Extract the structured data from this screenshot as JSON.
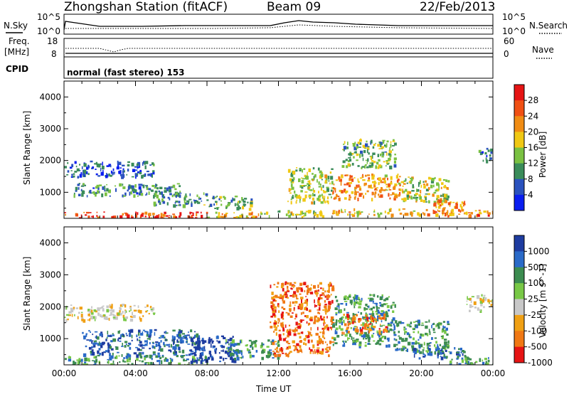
{
  "header": {
    "station": "Zhongshan Station (fitACF)",
    "beam": "Beam 09",
    "date": "22/Feb/2013"
  },
  "status_panels": {
    "left_labels": {
      "nsky": "N.Sky",
      "freq": "Freq.",
      "mhz": "[MHz]",
      "cpid": "CPID"
    },
    "right_labels": {
      "nsearch": "N.Search",
      "nave": "Nave"
    },
    "nsky_ticks": [
      "10^5",
      "10^0"
    ],
    "nsearch_ticks": [
      "10^5",
      "10^0"
    ],
    "freq_ticks": [
      "18",
      "8"
    ],
    "nave_ticks": [
      "60",
      "0"
    ],
    "cpid_text": "normal (fast stereo) 153"
  },
  "colors": {
    "power": [
      "#0a1ef0",
      "#2a52be",
      "#3a8c5a",
      "#7ac142",
      "#f0c814",
      "#f08c14",
      "#f05014",
      "#e61414"
    ],
    "velocity": [
      "#1e3ca0",
      "#2a6ac8",
      "#3c8c50",
      "#78c846",
      "#c8c8c8",
      "#f0a014",
      "#f07814",
      "#e61414"
    ]
  },
  "chart_data": [
    {
      "type": "heatmap",
      "panel": "power",
      "ylabel": "Slant Range [km]",
      "yticks": [
        "4000",
        "3000",
        "2000",
        "1000"
      ],
      "ylim": [
        180,
        4500
      ],
      "xlim": [
        "00:00",
        "24:00"
      ],
      "colorbar": {
        "label": "Power [dB]",
        "ticks": [
          "28",
          "24",
          "20",
          "16",
          "12",
          "8",
          "4"
        ],
        "range": [
          0,
          32
        ]
      },
      "regions": [
        {
          "t": [
            0.0,
            8.0
          ],
          "r": [
            200,
            400
          ],
          "level": 0.9
        },
        {
          "t": [
            8.0,
            11.0
          ],
          "r": [
            200,
            400
          ],
          "level": 0.65
        },
        {
          "t": [
            11.0,
            14.5
          ],
          "r": [
            250,
            450
          ],
          "level": 0.45
        },
        {
          "t": [
            15.0,
            21.0
          ],
          "r": [
            300,
            500
          ],
          "level": 0.6
        },
        {
          "t": [
            21.0,
            24.0
          ],
          "r": [
            280,
            450
          ],
          "level": 0.75
        },
        {
          "t": [
            0.0,
            5.0
          ],
          "r": [
            1500,
            2000
          ],
          "level": 0.15
        },
        {
          "t": [
            0.5,
            6.5
          ],
          "r": [
            900,
            1300
          ],
          "level": 0.25
        },
        {
          "t": [
            5.0,
            8.0
          ],
          "r": [
            600,
            1000
          ],
          "level": 0.3
        },
        {
          "t": [
            8.0,
            10.5
          ],
          "r": [
            500,
            900
          ],
          "level": 0.35
        },
        {
          "t": [
            12.5,
            15.0
          ],
          "r": [
            700,
            1800
          ],
          "level": 0.45
        },
        {
          "t": [
            15.0,
            19.0
          ],
          "r": [
            800,
            1600
          ],
          "level": 0.7
        },
        {
          "t": [
            15.5,
            18.5
          ],
          "r": [
            1800,
            2700
          ],
          "level": 0.4
        },
        {
          "t": [
            19.0,
            21.5
          ],
          "r": [
            700,
            1500
          ],
          "level": 0.5
        },
        {
          "t": [
            20.5,
            22.5
          ],
          "r": [
            400,
            800
          ],
          "level": 0.75
        },
        {
          "t": [
            23.0,
            24.0
          ],
          "r": [
            2000,
            2400
          ],
          "level": 0.15
        }
      ]
    },
    {
      "type": "heatmap",
      "panel": "velocity",
      "ylabel": "Slant Range [km]",
      "yticks": [
        "4000",
        "3000",
        "2000",
        "1000"
      ],
      "ylim": [
        180,
        4500
      ],
      "xlim": [
        "00:00",
        "24:00"
      ],
      "xlabel": "Time UT",
      "xticks": [
        "00:00",
        "04:00",
        "08:00",
        "12:00",
        "16:00",
        "20:00",
        "00:00"
      ],
      "colorbar": {
        "label": "Velocity [m s^-1]",
        "ticks": [
          "1000",
          "500",
          "100",
          "25",
          "-25",
          "-100",
          "-500",
          "-1000"
        ]
      },
      "regions": [
        {
          "t": [
            0.0,
            5.0
          ],
          "r": [
            1600,
            2100
          ],
          "level": 4
        },
        {
          "t": [
            0.0,
            8.0
          ],
          "r": [
            200,
            500
          ],
          "level": 2
        },
        {
          "t": [
            1.0,
            7.5
          ],
          "r": [
            500,
            1300
          ],
          "level": 1
        },
        {
          "t": [
            7.0,
            9.5
          ],
          "r": [
            300,
            1100
          ],
          "level": 0
        },
        {
          "t": [
            9.0,
            12.0
          ],
          "r": [
            400,
            1000
          ],
          "level": 2
        },
        {
          "t": [
            11.5,
            15.0
          ],
          "r": [
            500,
            2800
          ],
          "level": 6
        },
        {
          "t": [
            15.0,
            18.5
          ],
          "r": [
            800,
            2400
          ],
          "level": 2
        },
        {
          "t": [
            15.5,
            18.0
          ],
          "r": [
            1200,
            1800
          ],
          "level": 6
        },
        {
          "t": [
            18.5,
            21.5
          ],
          "r": [
            600,
            1600
          ],
          "level": 2
        },
        {
          "t": [
            19.5,
            22.5
          ],
          "r": [
            400,
            800
          ],
          "level": 1
        },
        {
          "t": [
            21.5,
            24.0
          ],
          "r": [
            200,
            450
          ],
          "level": 2
        },
        {
          "t": [
            22.5,
            24.0
          ],
          "r": [
            1900,
            2400
          ],
          "level": 4
        }
      ]
    }
  ]
}
